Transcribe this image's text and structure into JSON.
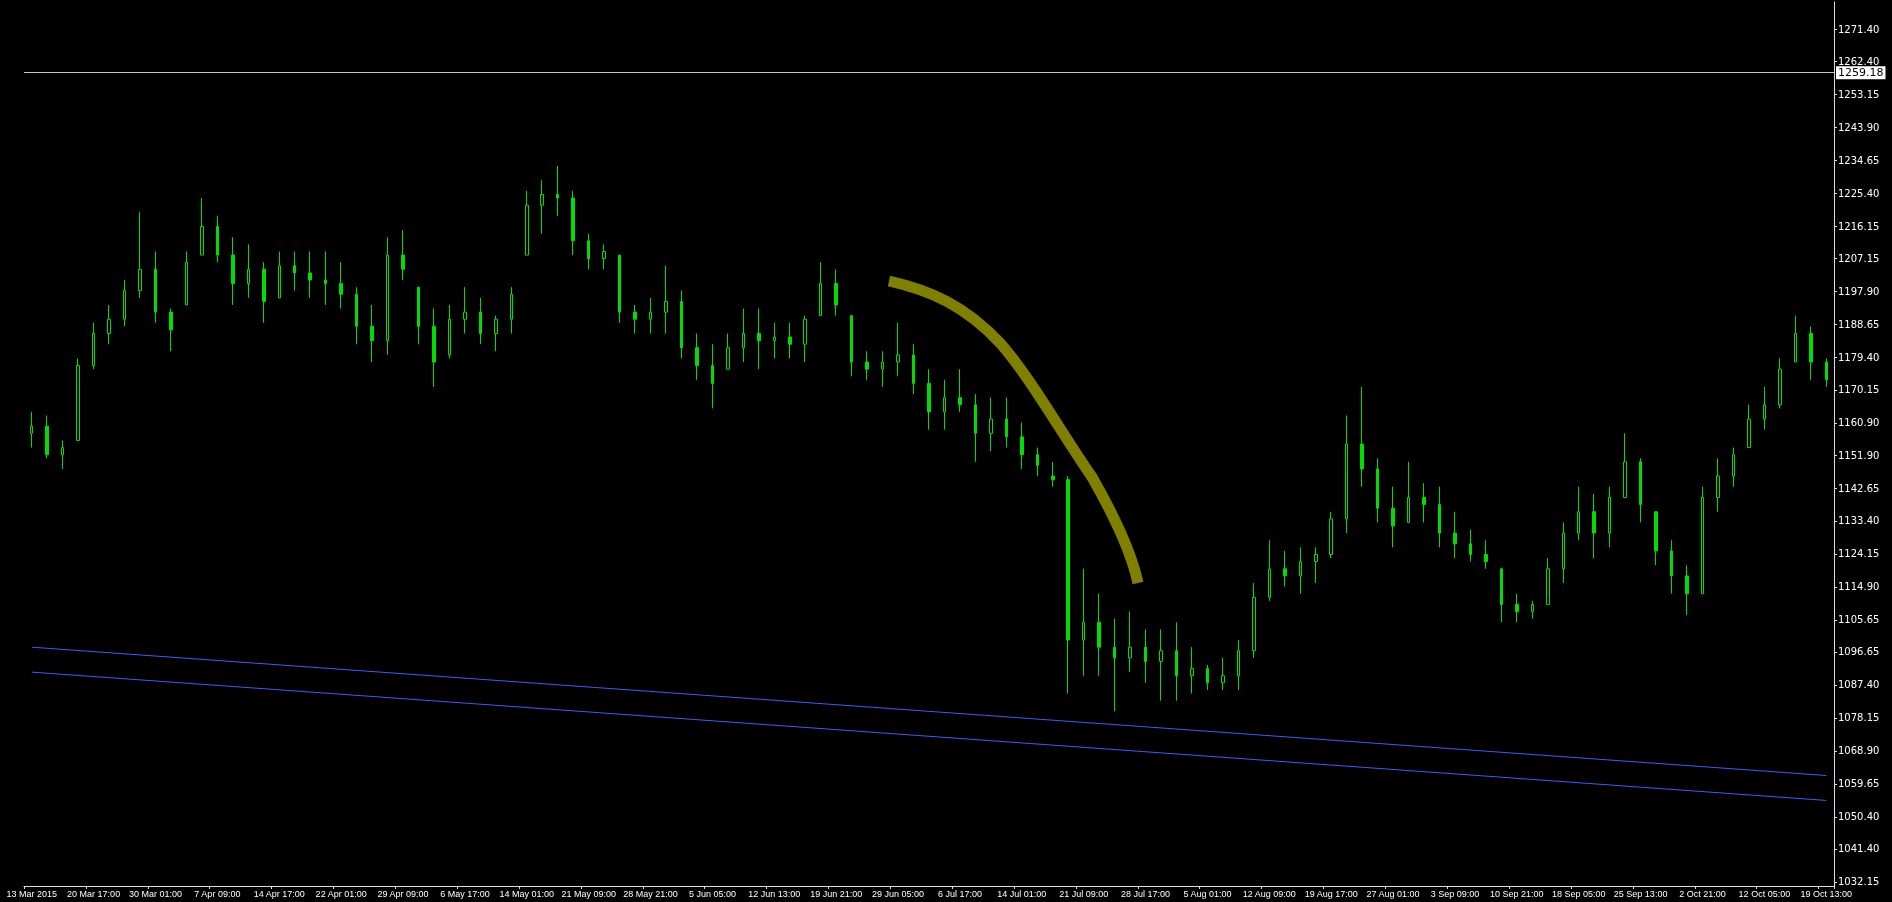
{
  "chart_data": {
    "type": "candlestick",
    "categories": [
      "13 Mar 2015",
      null,
      null,
      null,
      "20 Mar 17:00",
      null,
      null,
      null,
      "30 Mar 01:00",
      null,
      null,
      null,
      "7 Apr 09:00",
      null,
      null,
      null,
      "14 Apr 17:00",
      null,
      null,
      null,
      "22 Apr 01:00",
      null,
      null,
      null,
      "29 Apr 09:00",
      null,
      null,
      null,
      "6 May 17:00",
      null,
      null,
      null,
      "14 May 01:00",
      null,
      null,
      null,
      "21 May 09:00",
      null,
      null,
      null,
      "28 May 21:00",
      null,
      null,
      null,
      "5 Jun 05:00",
      null,
      null,
      null,
      "12 Jun 13:00",
      null,
      null,
      null,
      "19 Jun 21:00",
      null,
      null,
      null,
      "29 Jun 05:00",
      null,
      null,
      null,
      "6 Jul 17:00",
      null,
      null,
      null,
      "14 Jul 01:00",
      null,
      null,
      null,
      "21 Jul 09:00",
      null,
      null,
      null,
      "28 Jul 17:00",
      null,
      null,
      null,
      "5 Aug 01:00",
      null,
      null,
      null,
      "12 Aug 09:00",
      null,
      null,
      null,
      "19 Aug 17:00",
      null,
      null,
      null,
      "27 Aug 01:00",
      null,
      null,
      null,
      "3 Sep 09:00",
      null,
      null,
      null,
      "10 Sep 21:00",
      null,
      null,
      null,
      "18 Sep 05:00",
      null,
      null,
      null,
      "25 Sep 13:00",
      null,
      null,
      null,
      "2 Oct 21:00",
      null,
      null,
      null,
      "12 Oct 05:00",
      null,
      null,
      null,
      "19 Oct 13:00"
    ],
    "series": [
      {
        "type": "candlestick",
        "color": "#00dd00",
        "ohlc": [
          [
            1158,
            1164,
            1154,
            1160
          ],
          [
            1160,
            1163,
            1151,
            1152
          ],
          [
            1152,
            1156,
            1148,
            1154
          ],
          [
            1156,
            1179,
            1156,
            1177
          ],
          [
            1177,
            1189,
            1176,
            1186
          ],
          [
            1186,
            1194,
            1183,
            1190
          ],
          [
            1190,
            1201,
            1188,
            1198
          ],
          [
            1198,
            1220,
            1196,
            1204
          ],
          [
            1204,
            1209,
            1189,
            1192
          ],
          [
            1192,
            1193,
            1181,
            1187
          ],
          [
            1194,
            1209,
            1194,
            1206
          ],
          [
            1208,
            1224,
            1208,
            1216
          ],
          [
            1216,
            1219,
            1206,
            1208
          ],
          [
            1208,
            1213,
            1194,
            1200
          ],
          [
            1200,
            1211,
            1196,
            1204
          ],
          [
            1204,
            1206,
            1189,
            1195
          ],
          [
            1196,
            1209,
            1196,
            1205
          ],
          [
            1205,
            1209,
            1198,
            1203
          ],
          [
            1203,
            1209,
            1196,
            1201
          ],
          [
            1201,
            1209,
            1194,
            1200
          ],
          [
            1200,
            1206,
            1193,
            1197
          ],
          [
            1197,
            1199,
            1183,
            1188
          ],
          [
            1188,
            1194,
            1178,
            1184
          ],
          [
            1184,
            1213,
            1180,
            1208
          ],
          [
            1208,
            1215,
            1201,
            1204
          ],
          [
            1199,
            1199,
            1183,
            1188
          ],
          [
            1188,
            1193,
            1171,
            1178
          ],
          [
            1180,
            1194,
            1179,
            1190
          ],
          [
            1190,
            1199,
            1186,
            1192
          ],
          [
            1192,
            1196,
            1183,
            1186
          ],
          [
            1186,
            1191,
            1181,
            1190
          ],
          [
            1190,
            1199,
            1186,
            1197
          ],
          [
            1208,
            1226,
            1208,
            1222
          ],
          [
            1222,
            1229,
            1214,
            1225
          ],
          [
            1225,
            1233,
            1219,
            1224
          ],
          [
            1224,
            1226,
            1208,
            1212
          ],
          [
            1212,
            1214,
            1204,
            1207
          ],
          [
            1207,
            1211,
            1204,
            1209
          ],
          [
            1208,
            1208,
            1189,
            1192
          ],
          [
            1192,
            1194,
            1186,
            1190
          ],
          [
            1190,
            1196,
            1186,
            1192
          ],
          [
            1192,
            1205,
            1186,
            1195
          ],
          [
            1195,
            1198,
            1179,
            1182
          ],
          [
            1182,
            1186,
            1173,
            1177
          ],
          [
            1177,
            1183,
            1165,
            1172
          ],
          [
            1176,
            1186,
            1176,
            1182
          ],
          [
            1182,
            1193,
            1178,
            1186
          ],
          [
            1186,
            1193,
            1176,
            1184
          ],
          [
            1184,
            1189,
            1179,
            1185
          ],
          [
            1185,
            1189,
            1179,
            1183
          ],
          [
            1183,
            1191,
            1178,
            1190
          ],
          [
            1191,
            1206,
            1191,
            1200
          ],
          [
            1200,
            1204,
            1191,
            1194
          ],
          [
            1191,
            1191,
            1174,
            1178
          ],
          [
            1178,
            1181,
            1173,
            1176
          ],
          [
            1176,
            1181,
            1171,
            1178
          ],
          [
            1178,
            1189,
            1174,
            1180
          ],
          [
            1180,
            1183,
            1169,
            1172
          ],
          [
            1172,
            1176,
            1159,
            1164
          ],
          [
            1164,
            1173,
            1159,
            1168
          ],
          [
            1168,
            1176,
            1164,
            1166
          ],
          [
            1166,
            1169,
            1150,
            1158
          ],
          [
            1158,
            1168,
            1153,
            1162
          ],
          [
            1162,
            1168,
            1154,
            1157
          ],
          [
            1157,
            1161,
            1148,
            1152
          ],
          [
            1152,
            1154,
            1146,
            1149
          ],
          [
            1146,
            1150,
            1143,
            1145
          ],
          [
            1145,
            1146,
            1085,
            1100
          ],
          [
            1100,
            1120,
            1090,
            1105
          ],
          [
            1105,
            1113,
            1090,
            1098
          ],
          [
            1098,
            1106,
            1080,
            1095
          ],
          [
            1095,
            1108,
            1091,
            1098
          ],
          [
            1098,
            1103,
            1088,
            1094
          ],
          [
            1094,
            1103,
            1083,
            1097
          ],
          [
            1097,
            1105,
            1083,
            1090
          ],
          [
            1090,
            1098,
            1085,
            1092
          ],
          [
            1092,
            1093,
            1086,
            1088
          ],
          [
            1088,
            1095,
            1086,
            1090
          ],
          [
            1090,
            1100,
            1086,
            1097
          ],
          [
            1097,
            1116,
            1095,
            1112
          ],
          [
            1112,
            1128,
            1111,
            1120
          ],
          [
            1120,
            1125,
            1115,
            1118
          ],
          [
            1118,
            1126,
            1113,
            1122
          ],
          [
            1122,
            1126,
            1116,
            1124
          ],
          [
            1124,
            1136,
            1123,
            1134
          ],
          [
            1134,
            1163,
            1130,
            1155
          ],
          [
            1155,
            1171,
            1143,
            1148
          ],
          [
            1148,
            1151,
            1133,
            1137
          ],
          [
            1137,
            1143,
            1126,
            1132
          ],
          [
            1133,
            1150,
            1133,
            1140
          ],
          [
            1140,
            1144,
            1133,
            1138
          ],
          [
            1138,
            1143,
            1126,
            1130
          ],
          [
            1130,
            1136,
            1123,
            1127
          ],
          [
            1127,
            1131,
            1122,
            1124
          ],
          [
            1124,
            1128,
            1120,
            1122
          ],
          [
            1120,
            1120,
            1105,
            1110
          ],
          [
            1110,
            1113,
            1105,
            1108
          ],
          [
            1108,
            1111,
            1106,
            1110
          ],
          [
            1110,
            1123,
            1110,
            1120
          ],
          [
            1120,
            1133,
            1116,
            1130
          ],
          [
            1130,
            1143,
            1128,
            1136
          ],
          [
            1136,
            1141,
            1123,
            1130
          ],
          [
            1130,
            1143,
            1126,
            1140
          ],
          [
            1140,
            1158,
            1140,
            1150
          ],
          [
            1150,
            1151,
            1133,
            1138
          ],
          [
            1136,
            1136,
            1121,
            1125
          ],
          [
            1125,
            1128,
            1113,
            1118
          ],
          [
            1118,
            1121,
            1107,
            1113
          ],
          [
            1113,
            1143,
            1113,
            1140
          ],
          [
            1140,
            1151,
            1136,
            1146
          ],
          [
            1146,
            1154,
            1143,
            1152
          ],
          [
            1154,
            1166,
            1154,
            1162
          ],
          [
            1162,
            1171,
            1159,
            1166
          ],
          [
            1166,
            1179,
            1165,
            1176
          ],
          [
            1178,
            1191,
            1178,
            1186
          ],
          [
            1186,
            1188,
            1173,
            1178
          ],
          [
            1178,
            1179,
            1171,
            1173
          ]
        ]
      },
      {
        "type": "line",
        "color": "#3b5bff",
        "x": [
          "13 Mar 2015",
          "19 Oct 13:00"
        ],
        "values": [
          1098,
          1062
        ]
      },
      {
        "type": "line",
        "color": "#3b5bff",
        "x": [
          "13 Mar 2015",
          "19 Oct 13:00"
        ],
        "values": [
          1091,
          1055
        ]
      }
    ],
    "ylim": [
      1031,
      1279
    ],
    "yticks": [
      {
        "value": 1032.15,
        "label": "1032.15"
      },
      {
        "value": 1041.4,
        "label": "1041.40"
      },
      {
        "value": 1050.4,
        "label": "1050.40"
      },
      {
        "value": 1059.65,
        "label": "1059.65"
      },
      {
        "value": 1068.9,
        "label": "1068.90"
      },
      {
        "value": 1078.15,
        "label": "1078.15"
      },
      {
        "value": 1087.4,
        "label": "1087.40"
      },
      {
        "value": 1096.65,
        "label": "1096.65"
      },
      {
        "value": 1105.65,
        "label": "1105.65"
      },
      {
        "value": 1114.9,
        "label": "1114.90"
      },
      {
        "value": 1124.15,
        "label": "1124.15"
      },
      {
        "value": 1133.4,
        "label": "1133.40"
      },
      {
        "value": 1142.65,
        "label": "1142.65"
      },
      {
        "value": 1151.9,
        "label": "1151.90"
      },
      {
        "value": 1160.9,
        "label": "1160.90"
      },
      {
        "value": 1170.15,
        "label": "1170.15"
      },
      {
        "value": 1179.4,
        "label": "1179.40"
      },
      {
        "value": 1188.65,
        "label": "1188.65"
      },
      {
        "value": 1197.9,
        "label": "1197.90"
      },
      {
        "value": 1207.15,
        "label": "1207.15"
      },
      {
        "value": 1216.15,
        "label": "1216.15"
      },
      {
        "value": 1225.4,
        "label": "1225.40"
      },
      {
        "value": 1234.65,
        "label": "1234.65"
      },
      {
        "value": 1243.9,
        "label": "1243.90"
      },
      {
        "value": 1253.15,
        "label": "1253.15"
      },
      {
        "value": 1262.4,
        "label": "1262.40"
      },
      {
        "value": 1271.4,
        "label": "1271.40"
      }
    ],
    "ref_lines": [
      {
        "axis": "y",
        "value": 1259.18,
        "label": "1259.18",
        "color": "#c8c8c8"
      }
    ]
  }
}
